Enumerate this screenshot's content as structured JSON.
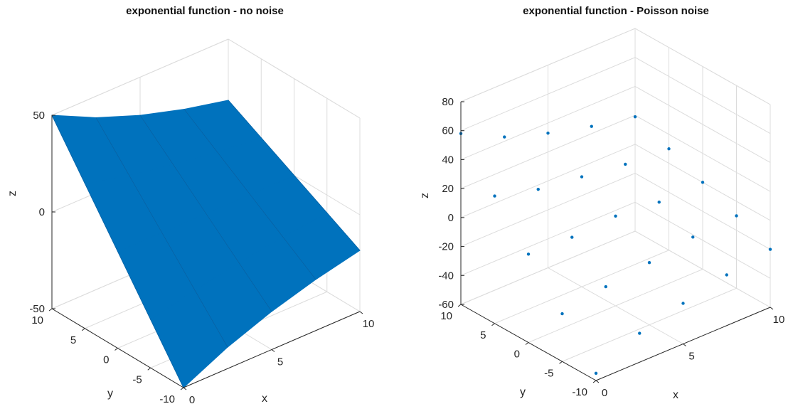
{
  "chart_data": [
    {
      "type": "surface",
      "title": "exponential function - no noise",
      "xlabel": "x",
      "ylabel": "y",
      "zlabel": "z",
      "xlim": [
        0,
        10
      ],
      "ylim": [
        -10,
        10
      ],
      "zlim": [
        -50,
        50
      ],
      "xticks": [
        0,
        5,
        10
      ],
      "yticks": [
        -10,
        -5,
        0,
        5,
        10
      ],
      "zticks": [
        -50,
        0,
        50
      ],
      "grid": true,
      "series": [
        {
          "x": [
            0,
            2.5,
            5,
            7.5,
            10
          ],
          "y": [
            -10,
            -5,
            0,
            5,
            10
          ],
          "z": [
            [
              -50,
              -25,
              0,
              25,
              50
            ],
            [
              -38.9,
              -19.5,
              0,
              19.5,
              38.9
            ],
            [
              -30.3,
              -15.2,
              0,
              15.2,
              30.3
            ],
            [
              -23.6,
              -11.8,
              0,
              11.8,
              23.6
            ],
            [
              -18.4,
              -9.2,
              0,
              9.2,
              18.4
            ]
          ]
        }
      ]
    },
    {
      "type": "scatter",
      "title": "exponential function - Poisson noise",
      "xlabel": "x",
      "ylabel": "y",
      "zlabel": "z",
      "xlim": [
        0,
        10
      ],
      "ylim": [
        -10,
        10
      ],
      "zlim": [
        -60,
        80
      ],
      "xticks": [
        0,
        5,
        10
      ],
      "yticks": [
        -10,
        -5,
        0,
        5,
        10
      ],
      "zticks": [
        -60,
        -40,
        -20,
        0,
        20,
        40,
        60,
        80
      ],
      "grid": true,
      "series": [
        {
          "x": [
            0,
            0,
            0,
            0,
            0,
            2.5,
            2.5,
            2.5,
            2.5,
            2.5,
            5,
            5,
            5,
            5,
            5,
            7.5,
            7.5,
            7.5,
            7.5,
            7.5,
            10,
            10,
            10,
            10,
            10
          ],
          "y": [
            -10,
            -5,
            0,
            5,
            10,
            -10,
            -5,
            0,
            5,
            10,
            -10,
            -5,
            0,
            5,
            10,
            -10,
            -5,
            0,
            5,
            10,
            -10,
            -5,
            0,
            5,
            10
          ],
          "z": [
            -55,
            -27,
            1,
            28,
            58,
            -40,
            -21,
            0,
            20,
            43,
            -32,
            -17,
            2,
            16,
            33,
            -25,
            -12,
            -1,
            12,
            25,
            -20,
            -10,
            0,
            10,
            19
          ]
        }
      ]
    }
  ]
}
